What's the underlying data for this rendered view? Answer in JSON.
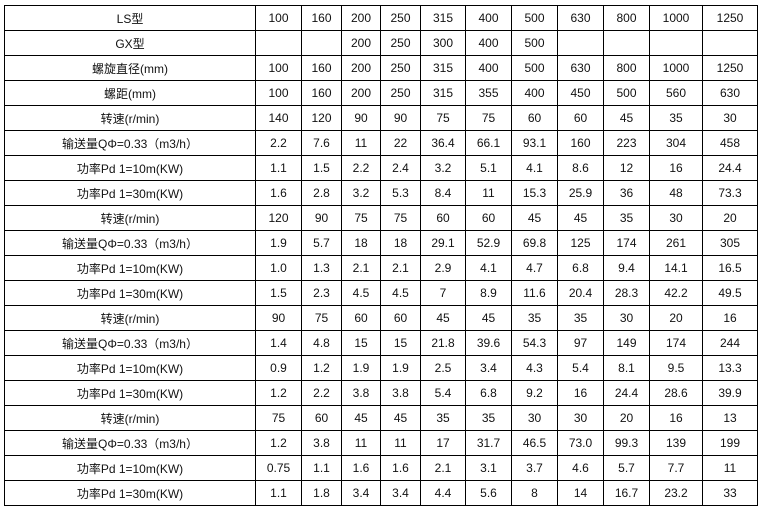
{
  "table": {
    "rows": [
      {
        "label": "LS型",
        "values": [
          "100",
          "160",
          "200",
          "250",
          "315",
          "400",
          "500",
          "630",
          "800",
          "1000",
          "1250"
        ]
      },
      {
        "label": "GX型",
        "values": [
          "",
          "",
          "200",
          "250",
          "300",
          "400",
          "500",
          "",
          "",
          "",
          ""
        ]
      },
      {
        "label": "螺旋直径(mm)",
        "values": [
          "100",
          "160",
          "200",
          "250",
          "315",
          "400",
          "500",
          "630",
          "800",
          "1000",
          "1250"
        ]
      },
      {
        "label": "螺距(mm)",
        "values": [
          "100",
          "160",
          "200",
          "250",
          "315",
          "355",
          "400",
          "450",
          "500",
          "560",
          "630"
        ]
      },
      {
        "label": "转速(r/min)",
        "values": [
          "140",
          "120",
          "90",
          "90",
          "75",
          "75",
          "60",
          "60",
          "45",
          "35",
          "30"
        ]
      },
      {
        "label": "输送量QΦ=0.33（m3/h）",
        "values": [
          "2.2",
          "7.6",
          "11",
          "22",
          "36.4",
          "66.1",
          "93.1",
          "160",
          "223",
          "304",
          "458"
        ]
      },
      {
        "label": "功率Pd 1=10m(KW)",
        "values": [
          "1.1",
          "1.5",
          "2.2",
          "2.4",
          "3.2",
          "5.1",
          "4.1",
          "8.6",
          "12",
          "16",
          "24.4"
        ]
      },
      {
        "label": "功率Pd 1=30m(KW)",
        "values": [
          "1.6",
          "2.8",
          "3.2",
          "5.3",
          "8.4",
          "11",
          "15.3",
          "25.9",
          "36",
          "48",
          "73.3"
        ]
      },
      {
        "label": "转速(r/min)",
        "values": [
          "120",
          "90",
          "75",
          "75",
          "60",
          "60",
          "45",
          "45",
          "35",
          "30",
          "20"
        ]
      },
      {
        "label": "输送量QΦ=0.33（m3/h）",
        "values": [
          "1.9",
          "5.7",
          "18",
          "18",
          "29.1",
          "52.9",
          "69.8",
          "125",
          "174",
          "261",
          "305"
        ]
      },
      {
        "label": "功率Pd 1=10m(KW)",
        "values": [
          "1.0",
          "1.3",
          "2.1",
          "2.1",
          "2.9",
          "4.1",
          "4.7",
          "6.8",
          "9.4",
          "14.1",
          "16.5"
        ]
      },
      {
        "label": "功率Pd 1=30m(KW)",
        "values": [
          "1.5",
          "2.3",
          "4.5",
          "4.5",
          "7",
          "8.9",
          "11.6",
          "20.4",
          "28.3",
          "42.2",
          "49.5"
        ]
      },
      {
        "label": "转速(r/min)",
        "values": [
          "90",
          "75",
          "60",
          "60",
          "45",
          "45",
          "35",
          "35",
          "30",
          "20",
          "16"
        ]
      },
      {
        "label": "输送量QΦ=0.33（m3/h）",
        "values": [
          "1.4",
          "4.8",
          "15",
          "15",
          "21.8",
          "39.6",
          "54.3",
          "97",
          "149",
          "174",
          "244"
        ]
      },
      {
        "label": "功率Pd 1=10m(KW)",
        "values": [
          "0.9",
          "1.2",
          "1.9",
          "1.9",
          "2.5",
          "3.4",
          "4.3",
          "5.4",
          "8.1",
          "9.5",
          "13.3"
        ]
      },
      {
        "label": "功率Pd 1=30m(KW)",
        "values": [
          "1.2",
          "2.2",
          "3.8",
          "3.8",
          "5.4",
          "6.8",
          "9.2",
          "16",
          "24.4",
          "28.6",
          "39.9"
        ]
      },
      {
        "label": "转速(r/min)",
        "values": [
          "75",
          "60",
          "45",
          "45",
          "35",
          "35",
          "30",
          "30",
          "20",
          "16",
          "13"
        ]
      },
      {
        "label": "输送量QΦ=0.33（m3/h）",
        "values": [
          "1.2",
          "3.8",
          "11",
          "11",
          "17",
          "31.7",
          "46.5",
          "73.0",
          "99.3",
          "139",
          "199"
        ]
      },
      {
        "label": "功率Pd 1=10m(KW)",
        "values": [
          "0.75",
          "1.1",
          "1.6",
          "1.6",
          "2.1",
          "3.1",
          "3.7",
          "4.6",
          "5.7",
          "7.7",
          "11"
        ]
      },
      {
        "label": "功率Pd 1=30m(KW)",
        "values": [
          "1.1",
          "1.8",
          "3.4",
          "3.4",
          "4.4",
          "5.6",
          "8",
          "14",
          "16.7",
          "23.2",
          "33"
        ]
      }
    ]
  }
}
